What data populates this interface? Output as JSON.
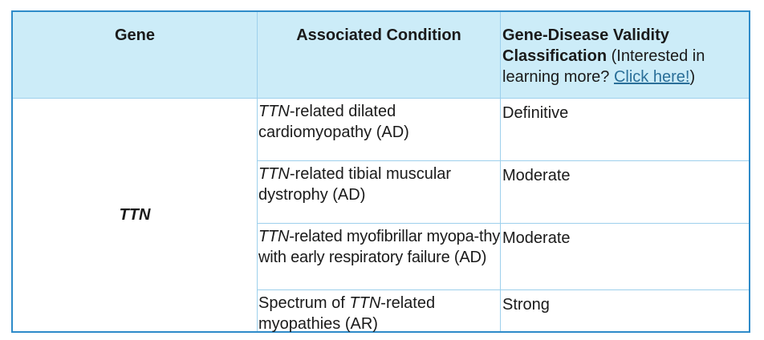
{
  "header": {
    "gene": "Gene",
    "condition": "Associated Condition",
    "classification_bold": "Gene-Disease Validity Classification",
    "classification_pre": " (Interested in learning more? ",
    "classification_link": "Click here!",
    "classification_post": ")"
  },
  "gene": "TTN",
  "rows": [
    {
      "cond_italic": "TTN",
      "cond_rest": "-related dilated cardiomyopathy (AD)",
      "classification": "Definitive"
    },
    {
      "cond_italic": "TTN",
      "cond_rest": "-related tibial muscular dystrophy (AD)",
      "classification": "Moderate"
    },
    {
      "cond_italic": "TTN",
      "cond_rest": "-related myofibrillar myopa-thy with early respiratory failure (AD)",
      "classification": "Moderate"
    },
    {
      "cond_pre": "Spectrum of ",
      "cond_italic": "TTN",
      "cond_rest": "-related myopathies (AR)",
      "classification": "Strong"
    }
  ]
}
